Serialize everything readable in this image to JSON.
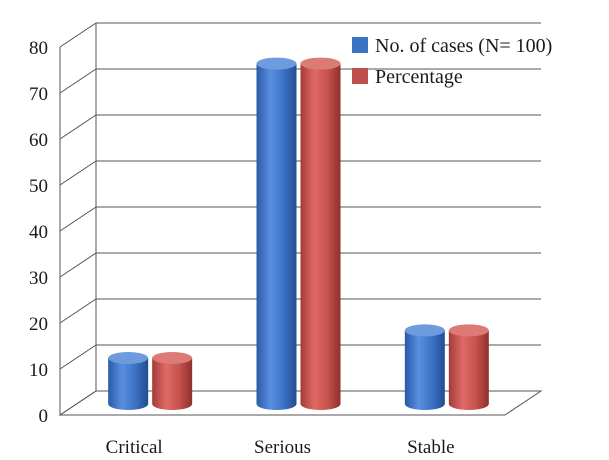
{
  "chart_data": {
    "type": "bar",
    "title": "",
    "xlabel": "",
    "ylabel": "",
    "ylim": [
      0,
      80
    ],
    "yticks": [
      "0",
      "10",
      "20",
      "30",
      "40",
      "50",
      "60",
      "70",
      "80"
    ],
    "categories": [
      "Critical",
      "Serious",
      "Stable"
    ],
    "series": [
      {
        "name": "No. of cases (N= 100)",
        "values": [
          10,
          74,
          16
        ],
        "color": "#3a72c4"
      },
      {
        "name": "Percentage",
        "values": [
          10,
          74,
          16
        ],
        "color": "#c0504d"
      }
    ],
    "grid": true,
    "legend_position": "top-right",
    "style": "3d-cylinder"
  }
}
